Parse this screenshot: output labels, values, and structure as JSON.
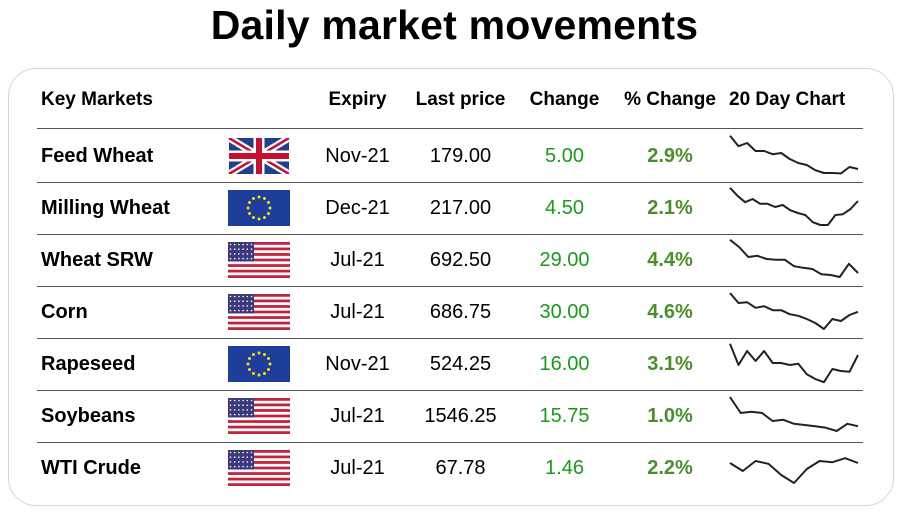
{
  "title": "Daily market movements",
  "headers": {
    "market": "Key Markets",
    "expiry": "Expiry",
    "last_price": "Last price",
    "change": "Change",
    "pct_change": "% Change",
    "chart": "20 Day Chart"
  },
  "colors": {
    "change": "#1a9a1a",
    "pct_change": "#4a8f2c"
  },
  "rows": [
    {
      "market": "Feed Wheat",
      "flag": "uk-flag-icon",
      "expiry": "Nov-21",
      "last_price": "179.00",
      "change": "5.00",
      "pct_change": "2.9%"
    },
    {
      "market": "Milling Wheat",
      "flag": "eu-flag-icon",
      "expiry": "Dec-21",
      "last_price": "217.00",
      "change": "4.50",
      "pct_change": "2.1%"
    },
    {
      "market": "Wheat SRW",
      "flag": "us-flag-icon",
      "expiry": "Jul-21",
      "last_price": "692.50",
      "change": "29.00",
      "pct_change": "4.4%"
    },
    {
      "market": "Corn",
      "flag": "us-flag-icon",
      "expiry": "Jul-21",
      "last_price": "686.75",
      "change": "30.00",
      "pct_change": "4.6%"
    },
    {
      "market": "Rapeseed",
      "flag": "eu-flag-icon",
      "expiry": "Nov-21",
      "last_price": "524.25",
      "change": "16.00",
      "pct_change": "3.1%"
    },
    {
      "market": "Soybeans",
      "flag": "us-flag-icon",
      "expiry": "Jul-21",
      "last_price": "1546.25",
      "change": "15.75",
      "pct_change": "1.0%"
    },
    {
      "market": "WTI Crude",
      "flag": "us-flag-icon",
      "expiry": "Jul-21",
      "last_price": "67.78",
      "change": "1.46",
      "pct_change": "2.2%"
    }
  ],
  "chart_data": {
    "type": "table",
    "title": "Daily market movements",
    "columns": [
      "Key Markets",
      "Expiry",
      "Last price",
      "Change",
      "% Change",
      "20 Day Chart"
    ],
    "sparkline_type": "line",
    "sparklines": [
      {
        "market": "Feed Wheat",
        "values": [
          0.98,
          0.72,
          0.8,
          0.6,
          0.6,
          0.52,
          0.55,
          0.4,
          0.3,
          0.25,
          0.12,
          0.05,
          0.05,
          0.04,
          0.2,
          0.15
        ]
      },
      {
        "market": "Milling Wheat",
        "values": [
          0.98,
          0.78,
          0.62,
          0.7,
          0.58,
          0.58,
          0.5,
          0.55,
          0.42,
          0.35,
          0.3,
          0.12,
          0.05,
          0.05,
          0.3,
          0.32,
          0.45,
          0.65
        ]
      },
      {
        "market": "Wheat SRW",
        "values": [
          0.98,
          0.8,
          0.55,
          0.58,
          0.5,
          0.48,
          0.48,
          0.32,
          0.28,
          0.25,
          0.12,
          0.1,
          0.05,
          0.38,
          0.15
        ]
      },
      {
        "market": "Corn",
        "values": [
          0.95,
          0.7,
          0.72,
          0.58,
          0.62,
          0.52,
          0.52,
          0.42,
          0.38,
          0.3,
          0.2,
          0.05,
          0.3,
          0.25,
          0.4,
          0.48
        ]
      },
      {
        "market": "Rapeseed",
        "values": [
          0.98,
          0.45,
          0.8,
          0.55,
          0.8,
          0.5,
          0.5,
          0.45,
          0.48,
          0.22,
          0.1,
          0.02,
          0.35,
          0.3,
          0.28,
          0.7
        ]
      },
      {
        "market": "Soybeans",
        "values": [
          0.95,
          0.55,
          0.58,
          0.55,
          0.35,
          0.38,
          0.28,
          0.25,
          0.22,
          0.18,
          0.1,
          0.28,
          0.22
        ]
      },
      {
        "market": "WTI Crude",
        "values": [
          0.6,
          0.4,
          0.65,
          0.58,
          0.3,
          0.1,
          0.45,
          0.65,
          0.62,
          0.72,
          0.6
        ]
      }
    ]
  }
}
